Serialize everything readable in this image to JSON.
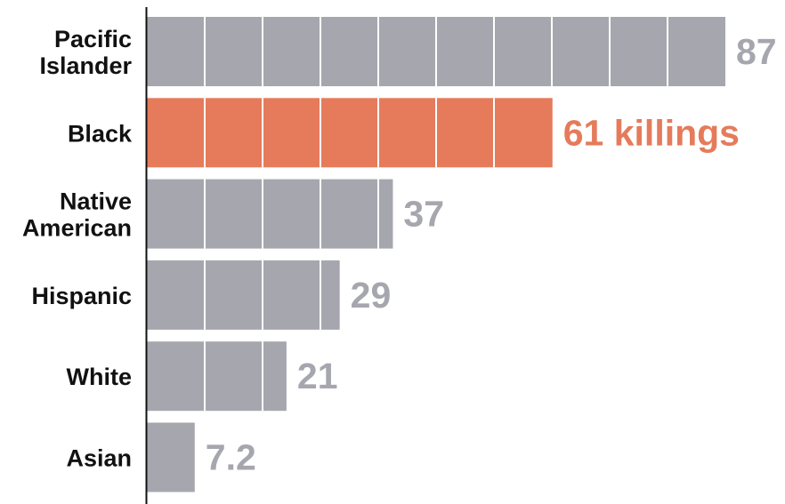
{
  "chart_data": {
    "type": "bar",
    "orientation": "horizontal",
    "categories": [
      [
        "Pacific",
        "Islander"
      ],
      [
        "Black"
      ],
      [
        "Native",
        "American"
      ],
      [
        "Hispanic"
      ],
      [
        "White"
      ],
      [
        "Asian"
      ]
    ],
    "values": [
      87,
      61,
      37,
      29,
      21,
      7.2
    ],
    "value_labels": [
      "87",
      "61 killings",
      "37",
      "29",
      "21",
      "7.2"
    ],
    "highlight_index": 1,
    "xlim": [
      0,
      87
    ],
    "unit_step": 8.7,
    "grid": false,
    "legend": "none"
  },
  "colors": {
    "bar": "#a6a7ae",
    "highlight": "#e57b5b",
    "value_text": "#a6a7ae",
    "highlight_text": "#e57b5b",
    "axis": "#111111",
    "divider": "#ffffff"
  }
}
